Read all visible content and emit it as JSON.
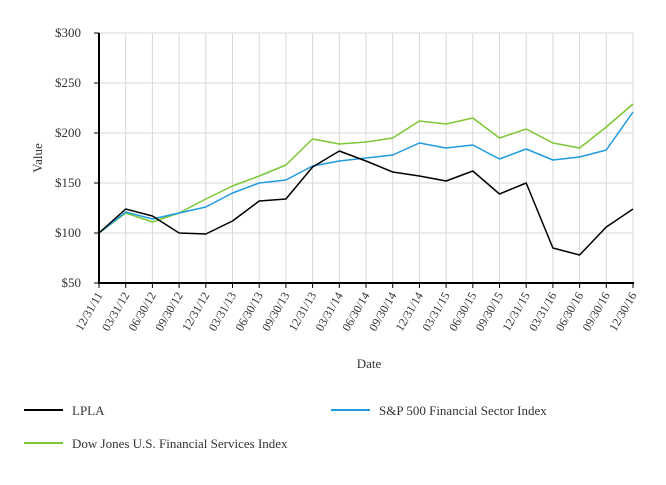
{
  "chart_data": {
    "type": "line",
    "title": "",
    "xlabel": "Date",
    "ylabel": "Value",
    "ylim": [
      50,
      300
    ],
    "yticks": [
      "$50",
      "$100",
      "$150",
      "$200",
      "$250",
      "$300"
    ],
    "ytick_values": [
      50,
      100,
      150,
      200,
      250,
      300
    ],
    "grid": true,
    "legend_placement": "bottom",
    "categories": [
      "12/31/11",
      "03/31/12",
      "06/30/12",
      "09/30/12",
      "12/31/12",
      "03/31/13",
      "06/30/13",
      "09/30/13",
      "12/31/13",
      "03/31/14",
      "06/30/14",
      "09/30/14",
      "12/31/14",
      "03/31/15",
      "06/30/15",
      "09/30/15",
      "12/31/15",
      "03/31/16",
      "06/30/16",
      "09/30/16",
      "12/30/16"
    ],
    "series": [
      {
        "name": "LPLA",
        "color": "#000000",
        "values": [
          100,
          124,
          117,
          100,
          99,
          112,
          132,
          134,
          166,
          182,
          172,
          161,
          157,
          152,
          162,
          139,
          150,
          85,
          78,
          106,
          124
        ]
      },
      {
        "name": "S&P 500 Financial Sector Index",
        "color": "#1f9be0",
        "values": [
          100,
          121,
          114,
          120,
          126,
          140,
          150,
          153,
          167,
          172,
          175,
          178,
          190,
          185,
          188,
          174,
          184,
          173,
          176,
          183,
          221
        ]
      },
      {
        "name": "Dow Jones U.S. Financial Services Index",
        "color": "#7cc733",
        "values": [
          100,
          120,
          111,
          120,
          134,
          147,
          157,
          168,
          194,
          189,
          191,
          195,
          212,
          209,
          215,
          195,
          204,
          190,
          185,
          206,
          229
        ]
      }
    ]
  }
}
